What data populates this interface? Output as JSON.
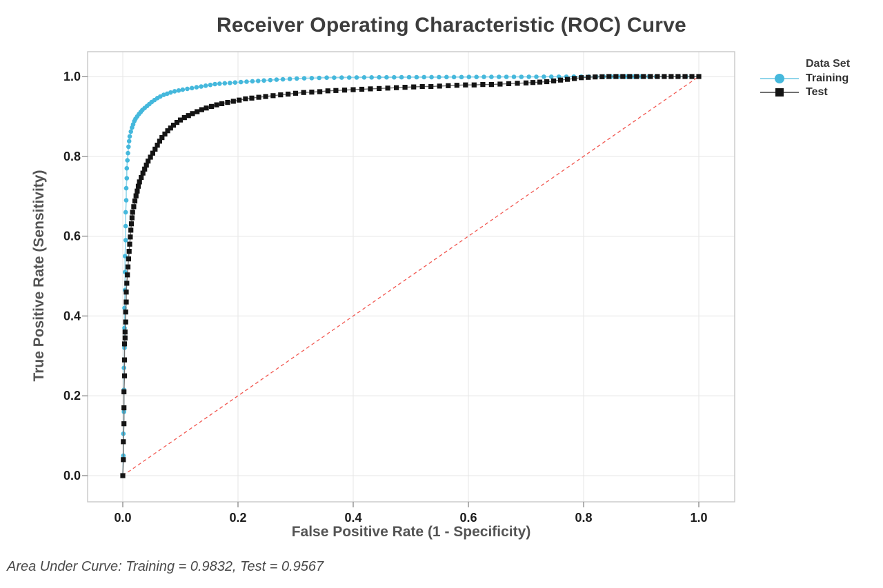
{
  "title": "Receiver Operating Characteristic (ROC) Curve",
  "footnote": "Area Under Curve: Training = 0.9832, Test = 0.9567",
  "axes": {
    "x_label": "False Positive Rate (1 - Specificity)",
    "y_label": "True Positive Rate (Sensitivity)",
    "x_ticks": [
      "0.0",
      "0.2",
      "0.4",
      "0.6",
      "0.8",
      "1.0"
    ],
    "y_ticks": [
      "0.0",
      "0.2",
      "0.4",
      "0.6",
      "0.8",
      "1.0"
    ]
  },
  "legend": {
    "title": "Data Set",
    "items": [
      {
        "label": "Training",
        "marker": "circle",
        "marker_color": "#45b8dc",
        "line_color": "#90d5ea"
      },
      {
        "label": "Test",
        "marker": "square",
        "marker_color": "#141414",
        "line_color": "#6f6f6f"
      }
    ]
  },
  "colors": {
    "background": "#ffffff",
    "grid": "#e9e9e9",
    "plot_border": "#c8c8c8",
    "tick_mark": "#909090",
    "diagonal": "#f25750",
    "training": "#45b8dc",
    "test": "#141414"
  },
  "chart_data": {
    "type": "line",
    "title": "Receiver Operating Characteristic (ROC) Curve",
    "xlabel": "False Positive Rate (1 - Specificity)",
    "ylabel": "True Positive Rate (Sensitivity)",
    "xlim": [
      0,
      1
    ],
    "ylim": [
      0,
      1
    ],
    "grid": true,
    "grid_step": 0.2,
    "legend_position": "right",
    "legend_title": "Data Set",
    "reference_line": {
      "from": [
        0,
        0
      ],
      "to": [
        1,
        1
      ],
      "style": "dashed",
      "color": "#f25750",
      "meaning": "chance diagonal"
    },
    "series": [
      {
        "name": "Training",
        "marker": "circle",
        "color": "#45b8dc",
        "line_color": "#90d5ea",
        "auc": 0.9832,
        "points": [
          [
            0.0,
            0.0
          ],
          [
            0.001,
            0.05
          ],
          [
            0.001,
            0.105
          ],
          [
            0.002,
            0.16
          ],
          [
            0.002,
            0.215
          ],
          [
            0.002,
            0.27
          ],
          [
            0.003,
            0.32
          ],
          [
            0.003,
            0.37
          ],
          [
            0.003,
            0.42
          ],
          [
            0.004,
            0.465
          ],
          [
            0.004,
            0.51
          ],
          [
            0.004,
            0.55
          ],
          [
            0.005,
            0.59
          ],
          [
            0.005,
            0.625
          ],
          [
            0.005,
            0.66
          ],
          [
            0.006,
            0.69
          ],
          [
            0.006,
            0.72
          ],
          [
            0.007,
            0.745
          ],
          [
            0.007,
            0.77
          ],
          [
            0.008,
            0.79
          ],
          [
            0.009,
            0.808
          ],
          [
            0.01,
            0.824
          ],
          [
            0.011,
            0.838
          ],
          [
            0.012,
            0.85
          ],
          [
            0.014,
            0.862
          ],
          [
            0.016,
            0.872
          ],
          [
            0.018,
            0.88
          ],
          [
            0.02,
            0.888
          ],
          [
            0.022,
            0.894
          ],
          [
            0.025,
            0.9
          ],
          [
            0.028,
            0.906
          ],
          [
            0.031,
            0.911
          ],
          [
            0.034,
            0.916
          ],
          [
            0.038,
            0.921
          ],
          [
            0.042,
            0.926
          ],
          [
            0.046,
            0.931
          ],
          [
            0.05,
            0.936
          ],
          [
            0.055,
            0.941
          ],
          [
            0.06,
            0.946
          ],
          [
            0.065,
            0.95
          ],
          [
            0.071,
            0.954
          ],
          [
            0.077,
            0.957
          ],
          [
            0.083,
            0.96
          ],
          [
            0.09,
            0.963
          ],
          [
            0.097,
            0.965
          ],
          [
            0.104,
            0.967
          ],
          [
            0.112,
            0.969
          ],
          [
            0.12,
            0.971
          ],
          [
            0.128,
            0.973
          ],
          [
            0.136,
            0.975
          ],
          [
            0.144,
            0.977
          ],
          [
            0.152,
            0.979
          ],
          [
            0.16,
            0.981
          ],
          [
            0.168,
            0.982
          ],
          [
            0.177,
            0.983
          ],
          [
            0.186,
            0.984
          ],
          [
            0.195,
            0.985
          ],
          [
            0.205,
            0.986
          ],
          [
            0.215,
            0.987
          ],
          [
            0.225,
            0.988
          ],
          [
            0.235,
            0.989
          ],
          [
            0.245,
            0.99
          ],
          [
            0.256,
            0.991
          ],
          [
            0.267,
            0.992
          ],
          [
            0.278,
            0.993
          ],
          [
            0.29,
            0.994
          ],
          [
            0.302,
            0.995
          ],
          [
            0.315,
            0.9955
          ],
          [
            0.328,
            0.996
          ],
          [
            0.341,
            0.9965
          ],
          [
            0.354,
            0.997
          ],
          [
            0.367,
            0.997
          ],
          [
            0.38,
            0.9972
          ],
          [
            0.393,
            0.9974
          ],
          [
            0.406,
            0.9976
          ],
          [
            0.419,
            0.9977
          ],
          [
            0.432,
            0.9978
          ],
          [
            0.445,
            0.9979
          ],
          [
            0.458,
            0.998
          ],
          [
            0.471,
            0.998
          ],
          [
            0.484,
            0.9981
          ],
          [
            0.497,
            0.9982
          ],
          [
            0.51,
            0.9983
          ],
          [
            0.523,
            0.9984
          ],
          [
            0.536,
            0.9984
          ],
          [
            0.549,
            0.9985
          ],
          [
            0.562,
            0.9986
          ],
          [
            0.575,
            0.9986
          ],
          [
            0.588,
            0.9987
          ],
          [
            0.601,
            0.9988
          ],
          [
            0.614,
            0.9988
          ],
          [
            0.627,
            0.9989
          ],
          [
            0.64,
            0.999
          ],
          [
            0.653,
            0.999
          ],
          [
            0.666,
            0.9991
          ],
          [
            0.679,
            0.9992
          ],
          [
            0.692,
            0.9992
          ],
          [
            0.705,
            0.9993
          ],
          [
            0.718,
            0.9993
          ],
          [
            0.731,
            0.9994
          ],
          [
            0.744,
            0.9994
          ],
          [
            0.757,
            0.9995
          ],
          [
            0.77,
            0.9995
          ],
          [
            0.783,
            0.9996
          ],
          [
            0.796,
            0.9996
          ],
          [
            0.809,
            0.9997
          ],
          [
            0.822,
            0.9997
          ],
          [
            0.835,
            0.9998
          ],
          [
            0.848,
            0.9998
          ],
          [
            0.861,
            0.9999
          ],
          [
            0.874,
            0.9999
          ],
          [
            0.887,
            1.0
          ],
          [
            0.9,
            1.0
          ],
          [
            0.913,
            1.0
          ],
          [
            0.926,
            1.0
          ],
          [
            0.939,
            1.0
          ],
          [
            0.952,
            1.0
          ],
          [
            0.965,
            1.0
          ],
          [
            0.978,
            1.0
          ],
          [
            1.0,
            1.0
          ]
        ]
      },
      {
        "name": "Test",
        "marker": "square",
        "color": "#141414",
        "line_color": "#6f6f6f",
        "auc": 0.9567,
        "points": [
          [
            0.0,
            0.0
          ],
          [
            0.001,
            0.04
          ],
          [
            0.001,
            0.085
          ],
          [
            0.002,
            0.13
          ],
          [
            0.002,
            0.17
          ],
          [
            0.002,
            0.21
          ],
          [
            0.003,
            0.25
          ],
          [
            0.003,
            0.29
          ],
          [
            0.003,
            0.33
          ],
          [
            0.004,
            0.345
          ],
          [
            0.004,
            0.36
          ],
          [
            0.005,
            0.385
          ],
          [
            0.005,
            0.41
          ],
          [
            0.006,
            0.435
          ],
          [
            0.006,
            0.46
          ],
          [
            0.007,
            0.482
          ],
          [
            0.008,
            0.503
          ],
          [
            0.009,
            0.523
          ],
          [
            0.01,
            0.543
          ],
          [
            0.011,
            0.562
          ],
          [
            0.012,
            0.58
          ],
          [
            0.013,
            0.598
          ],
          [
            0.014,
            0.615
          ],
          [
            0.015,
            0.631
          ],
          [
            0.016,
            0.646
          ],
          [
            0.017,
            0.66
          ],
          [
            0.019,
            0.674
          ],
          [
            0.021,
            0.688
          ],
          [
            0.023,
            0.701
          ],
          [
            0.025,
            0.713
          ],
          [
            0.027,
            0.725
          ],
          [
            0.029,
            0.736
          ],
          [
            0.032,
            0.747
          ],
          [
            0.035,
            0.758
          ],
          [
            0.038,
            0.768
          ],
          [
            0.041,
            0.778
          ],
          [
            0.044,
            0.788
          ],
          [
            0.048,
            0.798
          ],
          [
            0.052,
            0.808
          ],
          [
            0.056,
            0.818
          ],
          [
            0.06,
            0.828
          ],
          [
            0.064,
            0.838
          ],
          [
            0.068,
            0.847
          ],
          [
            0.073,
            0.856
          ],
          [
            0.078,
            0.864
          ],
          [
            0.083,
            0.871
          ],
          [
            0.088,
            0.878
          ],
          [
            0.094,
            0.885
          ],
          [
            0.1,
            0.891
          ],
          [
            0.107,
            0.897
          ],
          [
            0.114,
            0.902
          ],
          [
            0.121,
            0.907
          ],
          [
            0.129,
            0.912
          ],
          [
            0.137,
            0.917
          ],
          [
            0.145,
            0.921
          ],
          [
            0.154,
            0.925
          ],
          [
            0.163,
            0.929
          ],
          [
            0.172,
            0.932
          ],
          [
            0.182,
            0.935
          ],
          [
            0.192,
            0.938
          ],
          [
            0.202,
            0.941
          ],
          [
            0.213,
            0.944
          ],
          [
            0.224,
            0.946
          ],
          [
            0.236,
            0.948
          ],
          [
            0.248,
            0.95
          ],
          [
            0.261,
            0.952
          ],
          [
            0.274,
            0.954
          ],
          [
            0.287,
            0.956
          ],
          [
            0.3,
            0.958
          ],
          [
            0.314,
            0.96
          ],
          [
            0.328,
            0.961
          ],
          [
            0.342,
            0.962
          ],
          [
            0.356,
            0.964
          ],
          [
            0.37,
            0.965
          ],
          [
            0.385,
            0.966
          ],
          [
            0.4,
            0.967
          ],
          [
            0.415,
            0.968
          ],
          [
            0.43,
            0.969
          ],
          [
            0.445,
            0.97
          ],
          [
            0.46,
            0.971
          ],
          [
            0.475,
            0.972
          ],
          [
            0.49,
            0.973
          ],
          [
            0.505,
            0.974
          ],
          [
            0.52,
            0.975
          ],
          [
            0.535,
            0.975
          ],
          [
            0.55,
            0.976
          ],
          [
            0.565,
            0.977
          ],
          [
            0.58,
            0.978
          ],
          [
            0.595,
            0.979
          ],
          [
            0.61,
            0.979
          ],
          [
            0.625,
            0.98
          ],
          [
            0.64,
            0.98
          ],
          [
            0.655,
            0.981
          ],
          [
            0.67,
            0.982
          ],
          [
            0.685,
            0.983
          ],
          [
            0.7,
            0.984
          ],
          [
            0.712,
            0.985
          ],
          [
            0.724,
            0.986
          ],
          [
            0.736,
            0.987
          ],
          [
            0.748,
            0.989
          ],
          [
            0.76,
            0.991
          ],
          [
            0.772,
            0.993
          ],
          [
            0.784,
            0.995
          ],
          [
            0.796,
            0.997
          ],
          [
            0.808,
            0.998
          ],
          [
            0.82,
            0.999
          ],
          [
            0.832,
            0.9995
          ],
          [
            0.844,
            1.0
          ],
          [
            0.856,
            1.0
          ],
          [
            0.868,
            1.0
          ],
          [
            0.88,
            1.0
          ],
          [
            0.892,
            1.0
          ],
          [
            0.904,
            1.0
          ],
          [
            0.916,
            1.0
          ],
          [
            0.928,
            1.0
          ],
          [
            0.94,
            1.0
          ],
          [
            0.952,
            1.0
          ],
          [
            0.964,
            1.0
          ],
          [
            0.976,
            1.0
          ],
          [
            0.988,
            1.0
          ],
          [
            1.0,
            1.0
          ]
        ]
      }
    ]
  }
}
